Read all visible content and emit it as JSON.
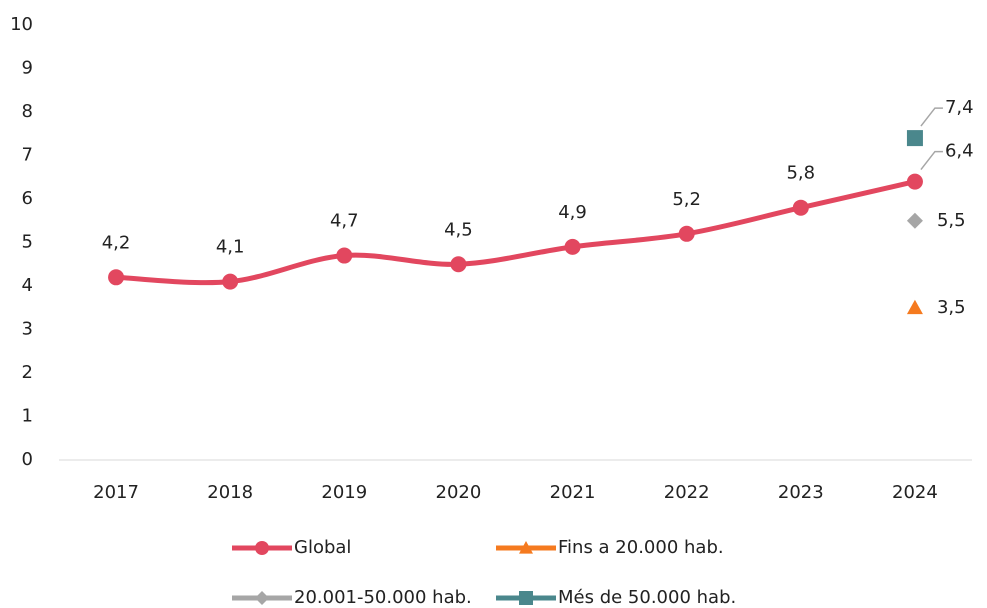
{
  "chart_data": {
    "type": "line",
    "categories": [
      "2017",
      "2018",
      "2019",
      "2020",
      "2021",
      "2022",
      "2023",
      "2024"
    ],
    "ylim": [
      0,
      10
    ],
    "yticks": [
      0,
      1,
      2,
      3,
      4,
      5,
      6,
      7,
      8,
      9,
      10
    ],
    "series": [
      {
        "name": "Global",
        "color": "#e2475f",
        "marker": "circle",
        "values": [
          4.2,
          4.1,
          4.7,
          4.5,
          4.9,
          5.2,
          5.8,
          6.4
        ],
        "value_labels": [
          "4,2",
          "4,1",
          "4,7",
          "4,5",
          "4,9",
          "5,2",
          "5,8",
          "6,4"
        ]
      },
      {
        "name": "Fins a 20.000 hab.",
        "color": "#f57a1f",
        "marker": "triangle",
        "values": [
          null,
          null,
          null,
          null,
          null,
          null,
          null,
          3.5
        ],
        "value_labels": [
          null,
          null,
          null,
          null,
          null,
          null,
          null,
          "3,5"
        ]
      },
      {
        "name": "20.001-50.000 hab.",
        "color": "#a6a6a6",
        "marker": "diamond",
        "values": [
          null,
          null,
          null,
          null,
          null,
          null,
          null,
          5.5
        ],
        "value_labels": [
          null,
          null,
          null,
          null,
          null,
          null,
          null,
          "5,5"
        ]
      },
      {
        "name": "Més de 50.000 hab.",
        "color": "#4a878c",
        "marker": "square",
        "values": [
          null,
          null,
          null,
          null,
          null,
          null,
          null,
          7.4
        ],
        "value_labels": [
          null,
          null,
          null,
          null,
          null,
          null,
          null,
          "7,4"
        ]
      }
    ]
  }
}
